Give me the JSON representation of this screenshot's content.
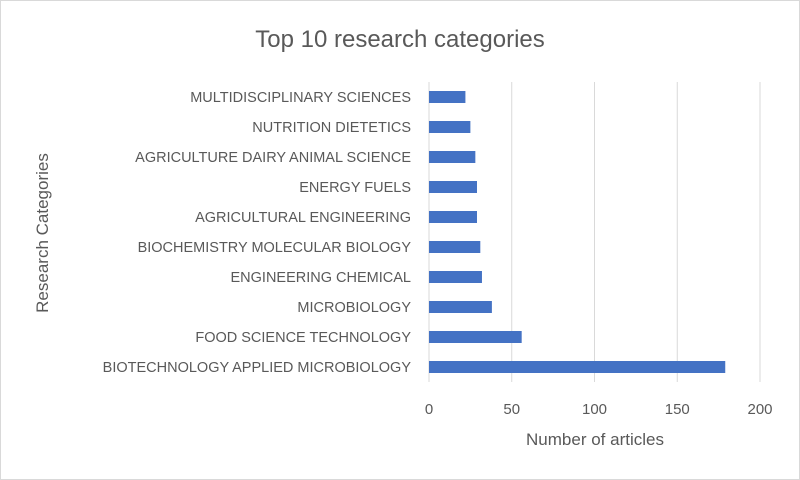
{
  "chart_data": {
    "type": "bar",
    "orientation": "horizontal",
    "title": "Top 10 research categories",
    "xlabel": "Number of articles",
    "ylabel": "Research Categories",
    "categories": [
      "MULTIDISCIPLINARY SCIENCES",
      "NUTRITION DIETETICS",
      "AGRICULTURE DAIRY ANIMAL SCIENCE",
      "ENERGY FUELS",
      "AGRICULTURAL ENGINEERING",
      "BIOCHEMISTRY MOLECULAR BIOLOGY",
      "ENGINEERING CHEMICAL",
      "MICROBIOLOGY",
      "FOOD SCIENCE TECHNOLOGY",
      "BIOTECHNOLOGY APPLIED MICROBIOLOGY"
    ],
    "values": [
      22,
      25,
      28,
      29,
      29,
      31,
      32,
      38,
      56,
      179
    ],
    "xlim": [
      0,
      200
    ],
    "xticks": [
      "0",
      "50",
      "100",
      "150",
      "200"
    ],
    "grid": "vertical",
    "legend": "none",
    "bar_color": "#4472c4"
  }
}
